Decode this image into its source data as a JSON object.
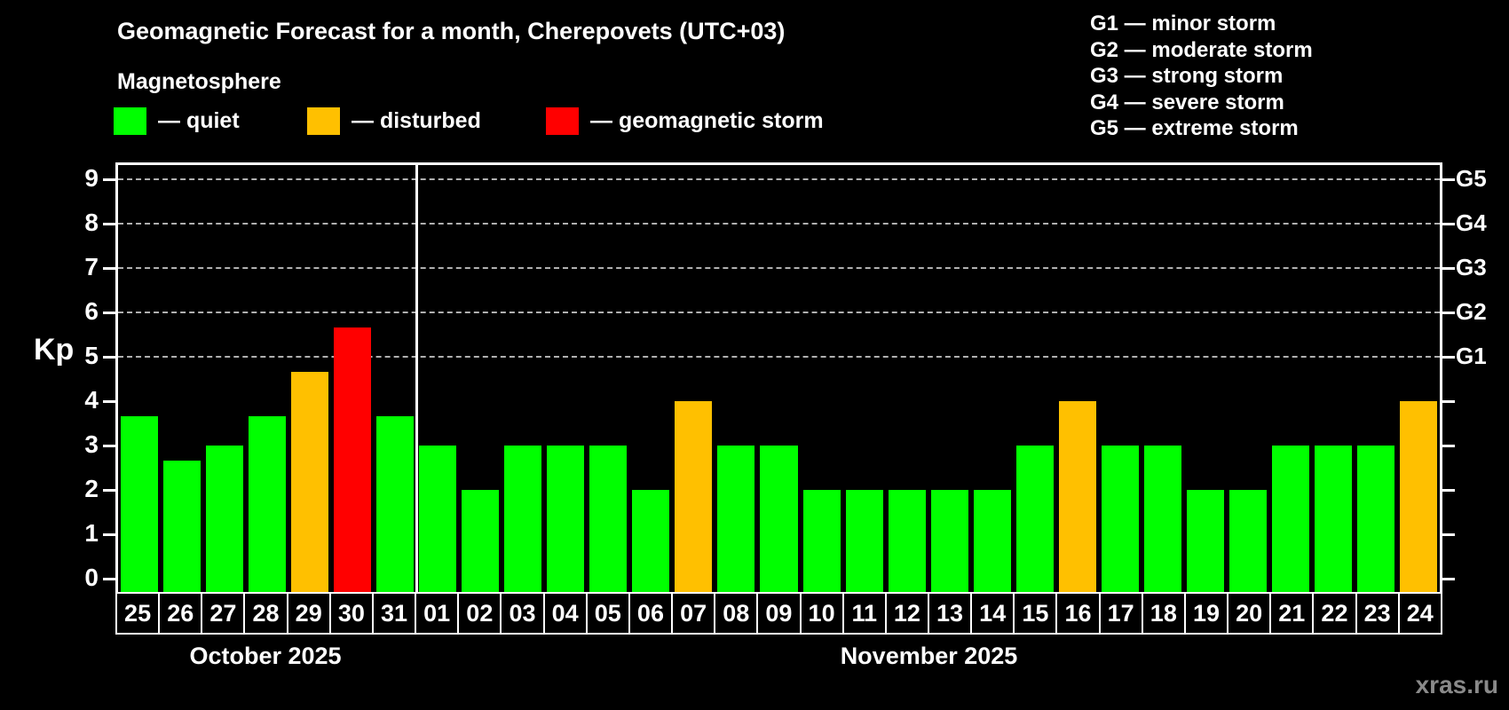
{
  "title": "Geomagnetic Forecast for a month, Cherepovets (UTC+03)",
  "subtitle": "Magnetosphere",
  "watermark": "xras.ru",
  "colors": {
    "quiet": "#00ff00",
    "disturbed": "#ffc000",
    "storm": "#ff0000",
    "gridline": "#b0b0b0",
    "axis": "#ffffff",
    "background": "#000000"
  },
  "legend": {
    "items": [
      {
        "label": "— quiet",
        "status": "quiet",
        "color": "#00ff00"
      },
      {
        "label": "— disturbed",
        "status": "disturbed",
        "color": "#ffc000"
      },
      {
        "label": "— geomagnetic storm",
        "status": "storm",
        "color": "#ff0000"
      }
    ]
  },
  "storm_scale_legend": [
    "G1 — minor storm",
    "G2 — moderate storm",
    "G3 — strong storm",
    "G4 — severe storm",
    "G5 — extreme storm"
  ],
  "axis": {
    "kp_label": "Kp",
    "y_ticks": [
      "0",
      "1",
      "2",
      "3",
      "4",
      "5",
      "6",
      "7",
      "8",
      "9"
    ],
    "right_labels": [
      {
        "label": "G1",
        "kp": 5
      },
      {
        "label": "G2",
        "kp": 6
      },
      {
        "label": "G3",
        "kp": 7
      },
      {
        "label": "G4",
        "kp": 8
      },
      {
        "label": "G5",
        "kp": 9
      }
    ]
  },
  "months": [
    {
      "label": "October 2025",
      "days": 7
    },
    {
      "label": "November 2025",
      "days": 24
    }
  ],
  "chart_data": {
    "type": "bar",
    "title": "Geomagnetic Forecast for a month, Cherepovets (UTC+03)",
    "xlabel": "",
    "ylabel": "Kp",
    "ylim": [
      0,
      9.4
    ],
    "grid": true,
    "grid_levels_kp": [
      5,
      6,
      7,
      8,
      9
    ],
    "legend_position": "top-left",
    "bars": [
      {
        "month": "October 2025",
        "day": "25",
        "kp": 3.67,
        "status": "quiet"
      },
      {
        "month": "October 2025",
        "day": "26",
        "kp": 2.67,
        "status": "quiet"
      },
      {
        "month": "October 2025",
        "day": "27",
        "kp": 3.0,
        "status": "quiet"
      },
      {
        "month": "October 2025",
        "day": "28",
        "kp": 3.67,
        "status": "quiet"
      },
      {
        "month": "October 2025",
        "day": "29",
        "kp": 4.67,
        "status": "disturbed"
      },
      {
        "month": "October 2025",
        "day": "30",
        "kp": 5.67,
        "status": "storm"
      },
      {
        "month": "October 2025",
        "day": "31",
        "kp": 3.67,
        "status": "quiet"
      },
      {
        "month": "November 2025",
        "day": "01",
        "kp": 3.0,
        "status": "quiet"
      },
      {
        "month": "November 2025",
        "day": "02",
        "kp": 2.0,
        "status": "quiet"
      },
      {
        "month": "November 2025",
        "day": "03",
        "kp": 3.0,
        "status": "quiet"
      },
      {
        "month": "November 2025",
        "day": "04",
        "kp": 3.0,
        "status": "quiet"
      },
      {
        "month": "November 2025",
        "day": "05",
        "kp": 3.0,
        "status": "quiet"
      },
      {
        "month": "November 2025",
        "day": "06",
        "kp": 2.0,
        "status": "quiet"
      },
      {
        "month": "November 2025",
        "day": "07",
        "kp": 4.0,
        "status": "disturbed"
      },
      {
        "month": "November 2025",
        "day": "08",
        "kp": 3.0,
        "status": "quiet"
      },
      {
        "month": "November 2025",
        "day": "09",
        "kp": 3.0,
        "status": "quiet"
      },
      {
        "month": "November 2025",
        "day": "10",
        "kp": 2.0,
        "status": "quiet"
      },
      {
        "month": "November 2025",
        "day": "11",
        "kp": 2.0,
        "status": "quiet"
      },
      {
        "month": "November 2025",
        "day": "12",
        "kp": 2.0,
        "status": "quiet"
      },
      {
        "month": "November 2025",
        "day": "13",
        "kp": 2.0,
        "status": "quiet"
      },
      {
        "month": "November 2025",
        "day": "14",
        "kp": 2.0,
        "status": "quiet"
      },
      {
        "month": "November 2025",
        "day": "15",
        "kp": 3.0,
        "status": "quiet"
      },
      {
        "month": "November 2025",
        "day": "16",
        "kp": 4.0,
        "status": "disturbed"
      },
      {
        "month": "November 2025",
        "day": "17",
        "kp": 3.0,
        "status": "quiet"
      },
      {
        "month": "November 2025",
        "day": "18",
        "kp": 3.0,
        "status": "quiet"
      },
      {
        "month": "November 2025",
        "day": "19",
        "kp": 2.0,
        "status": "quiet"
      },
      {
        "month": "November 2025",
        "day": "20",
        "kp": 2.0,
        "status": "quiet"
      },
      {
        "month": "November 2025",
        "day": "21",
        "kp": 3.0,
        "status": "quiet"
      },
      {
        "month": "November 2025",
        "day": "22",
        "kp": 3.0,
        "status": "quiet"
      },
      {
        "month": "November 2025",
        "day": "23",
        "kp": 3.0,
        "status": "quiet"
      },
      {
        "month": "November 2025",
        "day": "24",
        "kp": 4.0,
        "status": "disturbed"
      }
    ]
  }
}
